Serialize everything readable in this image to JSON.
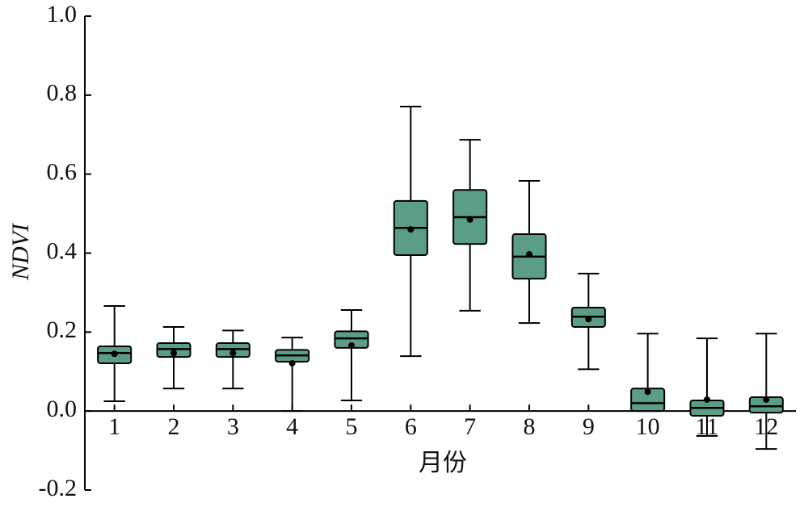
{
  "chart_data": {
    "type": "box",
    "x_label": "月份",
    "y_label": "NDVI",
    "categories": [
      "1",
      "2",
      "3",
      "4",
      "5",
      "6",
      "7",
      "8",
      "9",
      "10",
      "11",
      "12"
    ],
    "color": "#5b9d87",
    "min": [
      0.025,
      0.057,
      0.057,
      0.0,
      0.027,
      0.139,
      0.254,
      0.223,
      0.106,
      0.0,
      -0.063,
      -0.096
    ],
    "q1": [
      0.121,
      0.137,
      0.137,
      0.125,
      0.16,
      0.395,
      0.423,
      0.335,
      0.213,
      0.0,
      -0.012,
      -0.004
    ],
    "median": [
      0.147,
      0.157,
      0.157,
      0.141,
      0.184,
      0.464,
      0.491,
      0.391,
      0.239,
      0.02,
      0.008,
      0.012
    ],
    "q3": [
      0.164,
      0.172,
      0.172,
      0.155,
      0.202,
      0.532,
      0.56,
      0.448,
      0.262,
      0.057,
      0.027,
      0.035
    ],
    "max": [
      0.266,
      0.213,
      0.204,
      0.186,
      0.256,
      0.771,
      0.687,
      0.583,
      0.348,
      0.196,
      0.184,
      0.196
    ],
    "mean": [
      0.145,
      0.147,
      0.147,
      0.121,
      0.166,
      0.46,
      0.485,
      0.397,
      0.233,
      0.049,
      0.029,
      0.029
    ],
    "ylim": [
      -0.2,
      1.0
    ],
    "yticks": [
      -0.2,
      {
        "value": 0,
        "label": "0.0"
      },
      0.2,
      0.4,
      0.6,
      0.8,
      {
        "value": 1,
        "label": "1.0"
      }
    ]
  }
}
